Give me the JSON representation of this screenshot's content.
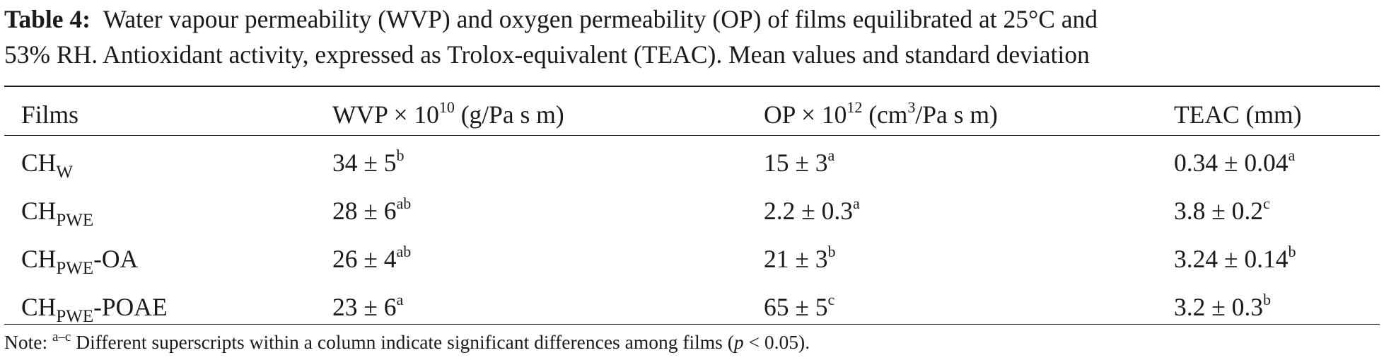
{
  "caption": {
    "label": "Table 4:",
    "line1": "Water vapour permeability (WVP) and oxygen permeability (OP) of films equilibrated at 25°C and",
    "line2": "53% RH. Antioxidant activity, expressed as Trolox-equivalent (TEAC). Mean values and standard deviation"
  },
  "header": {
    "films": "Films",
    "wvp_prefix": "WVP × 10",
    "wvp_exp": "10",
    "wvp_unit": " (g/Pa s m)",
    "op_prefix": "OP × 10",
    "op_exp": "12",
    "op_unit_a": " (cm",
    "op_unit_exp": "3",
    "op_unit_b": "/Pa s m)",
    "teac": "TEAC (mm)"
  },
  "rows": [
    {
      "film_base": "CH",
      "film_sub": "W",
      "film_suffix": "",
      "wvp": "34 ± 5",
      "wvp_sup": "b",
      "op": "15 ± 3",
      "op_sup": "a",
      "teac": "0.34 ± 0.04",
      "teac_sup": "a"
    },
    {
      "film_base": "CH",
      "film_sub": "PWE",
      "film_suffix": "",
      "wvp": "28 ± 6",
      "wvp_sup": "ab",
      "op": "2.2 ± 0.3",
      "op_sup": "a",
      "teac": "3.8 ± 0.2",
      "teac_sup": "c"
    },
    {
      "film_base": "CH",
      "film_sub": "PWE",
      "film_suffix": "-OA",
      "wvp": "26 ± 4",
      "wvp_sup": "ab",
      "op": "21 ± 3",
      "op_sup": "b",
      "teac": "3.24 ± 0.14",
      "teac_sup": "b"
    },
    {
      "film_base": "CH",
      "film_sub": "PWE",
      "film_suffix": "-POAE",
      "wvp": "23 ± 6",
      "wvp_sup": "a",
      "op": "65 ± 5",
      "op_sup": "c",
      "teac": "3.2 ± 0.3",
      "teac_sup": "b"
    }
  ],
  "note": {
    "prefix": "Note: ",
    "sup": "a–c",
    "text": " Different superscripts within a column indicate significant differences among films (",
    "p": "p",
    "end": " < 0.05)."
  }
}
